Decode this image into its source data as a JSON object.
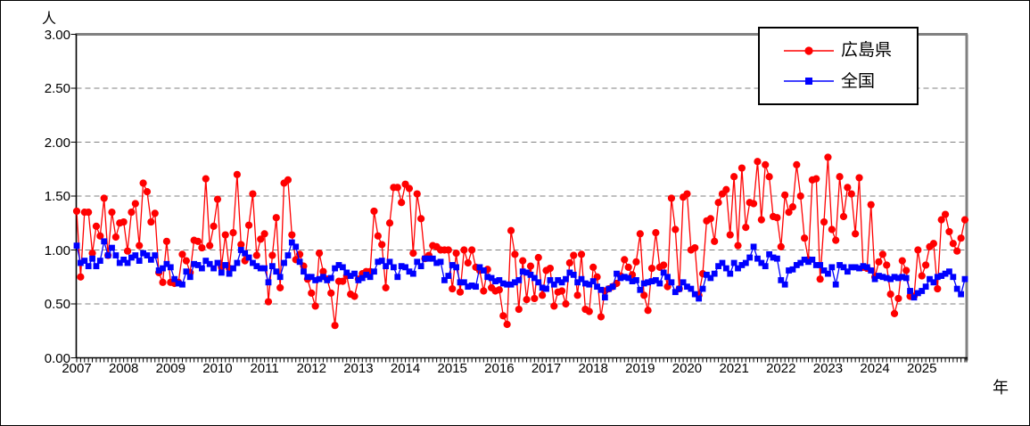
{
  "figure": {
    "y_axis_unit": "人",
    "x_axis_unit": "年"
  },
  "legend": {
    "items": [
      {
        "label": "広島県",
        "color": "#ff0000",
        "marker": "circle"
      },
      {
        "label": "全国",
        "color": "#0000ff",
        "marker": "square"
      }
    ]
  },
  "chart_data": {
    "type": "line",
    "title": "",
    "x_frequency": "monthly",
    "x_start": "2007-01",
    "x_end": "2025-12",
    "year_labels": [
      "2007",
      "2008",
      "2009",
      "2010",
      "2011",
      "2012",
      "2013",
      "2014",
      "2015",
      "2016",
      "2017",
      "2018",
      "2019",
      "2020",
      "2021",
      "2022",
      "2023",
      "2024",
      "2025"
    ],
    "y_tick_labels": [
      "3.00",
      "2.50",
      "2.00",
      "1.50",
      "1.00",
      "0.50",
      "0.00"
    ],
    "ylim": [
      0,
      3
    ],
    "y_tick_interval": 0.5,
    "grid": "horizontal-dashed",
    "grid_color": "#808080",
    "frame_color": "#808080",
    "legend_position": "top-right-inside",
    "series": [
      {
        "name": "広島県",
        "color": "#ff0000",
        "marker": "circle",
        "values": [
          1.36,
          0.75,
          1.35,
          1.35,
          0.97,
          1.22,
          1.13,
          1.48,
          0.95,
          1.35,
          1.12,
          1.25,
          1.26,
          0.99,
          1.35,
          1.43,
          1.04,
          1.62,
          1.54,
          1.26,
          1.34,
          0.79,
          0.7,
          1.08,
          0.7,
          0.69,
          0.7,
          0.96,
          0.9,
          0.79,
          1.09,
          1.08,
          1.02,
          1.66,
          1.04,
          1.22,
          1.47,
          0.84,
          1.14,
          0.83,
          1.16,
          1.7,
          1.05,
          0.9,
          1.23,
          1.52,
          0.95,
          1.1,
          1.15,
          0.52,
          0.95,
          1.3,
          0.65,
          1.62,
          1.65,
          1.14,
          0.91,
          0.96,
          0.85,
          0.73,
          0.6,
          0.48,
          0.97,
          0.8,
          0.73,
          0.6,
          0.3,
          0.71,
          0.71,
          0.76,
          0.59,
          0.57,
          0.73,
          0.78,
          0.8,
          0.8,
          1.36,
          1.13,
          1.05,
          0.65,
          1.25,
          1.58,
          1.58,
          1.44,
          1.61,
          1.57,
          0.97,
          1.52,
          1.29,
          0.92,
          0.95,
          1.04,
          1.03,
          1.0,
          1.0,
          1.0,
          0.64,
          0.97,
          0.61,
          1.0,
          0.88,
          1.0,
          0.84,
          0.81,
          0.62,
          0.82,
          0.65,
          0.62,
          0.63,
          0.39,
          0.31,
          1.18,
          0.96,
          0.45,
          0.9,
          0.54,
          0.85,
          0.55,
          0.93,
          0.58,
          0.81,
          0.83,
          0.48,
          0.61,
          0.62,
          0.5,
          0.88,
          0.95,
          0.58,
          0.96,
          0.45,
          0.43,
          0.84,
          0.75,
          0.38,
          0.62,
          0.64,
          0.66,
          0.69,
          0.76,
          0.91,
          0.84,
          0.77,
          0.89,
          1.15,
          0.58,
          0.44,
          0.83,
          1.16,
          0.84,
          0.86,
          0.66,
          1.48,
          1.19,
          0.64,
          1.49,
          1.52,
          1.0,
          1.02,
          0.58,
          0.78,
          1.27,
          1.29,
          1.08,
          1.44,
          1.52,
          1.56,
          1.14,
          1.68,
          1.04,
          1.76,
          1.21,
          1.44,
          1.43,
          1.82,
          1.28,
          1.79,
          1.68,
          1.31,
          1.3,
          1.03,
          1.51,
          1.35,
          1.4,
          1.79,
          1.5,
          1.11,
          0.91,
          1.65,
          1.66,
          0.73,
          1.26,
          1.86,
          1.19,
          1.09,
          1.68,
          1.31,
          1.58,
          1.52,
          1.15,
          1.67,
          0.84,
          0.83,
          1.42,
          0.75,
          0.89,
          0.96,
          0.86,
          0.59,
          0.41,
          0.55,
          0.9,
          0.81,
          0.57,
          0.57,
          1.0,
          0.76,
          0.86,
          1.03,
          1.06,
          0.64,
          1.28,
          1.33,
          1.17,
          1.06,
          0.99,
          1.11,
          1.28
        ]
      },
      {
        "name": "全国",
        "color": "#0000ff",
        "marker": "square",
        "values": [
          1.04,
          0.88,
          0.9,
          0.85,
          0.92,
          0.85,
          0.9,
          1.08,
          0.95,
          1.02,
          0.95,
          0.88,
          0.91,
          0.88,
          0.93,
          0.95,
          0.9,
          0.97,
          0.95,
          0.91,
          0.95,
          0.81,
          0.83,
          0.87,
          0.84,
          0.73,
          0.69,
          0.68,
          0.8,
          0.75,
          0.87,
          0.86,
          0.83,
          0.9,
          0.87,
          0.83,
          0.88,
          0.79,
          0.86,
          0.78,
          0.83,
          0.88,
          1.0,
          0.97,
          0.93,
          0.88,
          0.85,
          0.83,
          0.83,
          0.7,
          0.85,
          0.8,
          0.75,
          0.88,
          0.95,
          1.07,
          1.03,
          0.89,
          0.8,
          0.75,
          0.75,
          0.72,
          0.73,
          0.75,
          0.72,
          0.74,
          0.83,
          0.86,
          0.84,
          0.79,
          0.76,
          0.78,
          0.72,
          0.74,
          0.77,
          0.75,
          0.8,
          0.89,
          0.9,
          0.85,
          0.89,
          0.84,
          0.75,
          0.85,
          0.84,
          0.8,
          0.78,
          0.89,
          0.85,
          0.92,
          0.92,
          0.92,
          0.88,
          0.89,
          0.72,
          0.76,
          0.86,
          0.84,
          0.7,
          0.7,
          0.66,
          0.67,
          0.66,
          0.84,
          0.81,
          0.75,
          0.74,
          0.71,
          0.72,
          0.69,
          0.68,
          0.68,
          0.7,
          0.72,
          0.8,
          0.79,
          0.77,
          0.74,
          0.7,
          0.65,
          0.64,
          0.72,
          0.68,
          0.72,
          0.7,
          0.73,
          0.79,
          0.77,
          0.7,
          0.73,
          0.69,
          0.68,
          0.71,
          0.66,
          0.63,
          0.56,
          0.64,
          0.66,
          0.78,
          0.74,
          0.75,
          0.74,
          0.71,
          0.72,
          0.63,
          0.69,
          0.7,
          0.71,
          0.72,
          0.69,
          0.79,
          0.75,
          0.7,
          0.61,
          0.64,
          0.7,
          0.66,
          0.64,
          0.59,
          0.55,
          0.64,
          0.77,
          0.74,
          0.78,
          0.85,
          0.88,
          0.83,
          0.78,
          0.88,
          0.83,
          0.86,
          0.88,
          0.93,
          1.03,
          0.92,
          0.88,
          0.85,
          0.96,
          0.93,
          0.92,
          0.72,
          0.68,
          0.81,
          0.82,
          0.86,
          0.88,
          0.91,
          0.89,
          0.91,
          0.86,
          0.86,
          0.81,
          0.78,
          0.84,
          0.68,
          0.86,
          0.84,
          0.8,
          0.84,
          0.84,
          0.83,
          0.85,
          0.84,
          0.81,
          0.73,
          0.76,
          0.75,
          0.74,
          0.73,
          0.75,
          0.74,
          0.75,
          0.74,
          0.62,
          0.56,
          0.6,
          0.62,
          0.66,
          0.73,
          0.7,
          0.75,
          0.76,
          0.78,
          0.8,
          0.75,
          0.64,
          0.59,
          0.73
        ]
      }
    ]
  }
}
